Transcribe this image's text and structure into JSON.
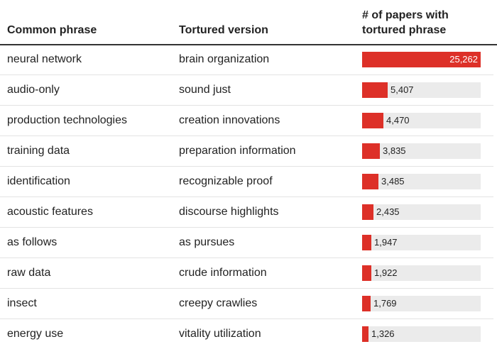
{
  "headers": {
    "phrase": "Common phrase",
    "tortured": "Tortured version",
    "count_line1": "# of papers with",
    "count_line2": "tortured phrase"
  },
  "colors": {
    "bar": "#dd3028",
    "track": "#ebebeb"
  },
  "chart_data": {
    "type": "table",
    "xlim": [
      0,
      25262
    ],
    "columns": [
      "Common phrase",
      "Tortured version",
      "# of papers with tortured phrase"
    ],
    "rows": [
      {
        "phrase": "neural network",
        "tortured": "brain organization",
        "value": 25262,
        "label": "25,262"
      },
      {
        "phrase": "audio-only",
        "tortured": "sound just",
        "value": 5407,
        "label": "5,407"
      },
      {
        "phrase": "production technologies",
        "tortured": "creation innovations",
        "value": 4470,
        "label": "4,470"
      },
      {
        "phrase": "training data",
        "tortured": "preparation information",
        "value": 3835,
        "label": "3,835"
      },
      {
        "phrase": "identification",
        "tortured": "recognizable proof",
        "value": 3485,
        "label": "3,485"
      },
      {
        "phrase": "acoustic features",
        "tortured": "discourse highlights",
        "value": 2435,
        "label": "2,435"
      },
      {
        "phrase": "as follows",
        "tortured": "as pursues",
        "value": 1947,
        "label": "1,947"
      },
      {
        "phrase": "raw data",
        "tortured": "crude information",
        "value": 1922,
        "label": "1,922"
      },
      {
        "phrase": "insect",
        "tortured": "creepy crawlies",
        "value": 1769,
        "label": "1,769"
      },
      {
        "phrase": "energy use",
        "tortured": "vitality utilization",
        "value": 1326,
        "label": "1,326"
      }
    ]
  }
}
